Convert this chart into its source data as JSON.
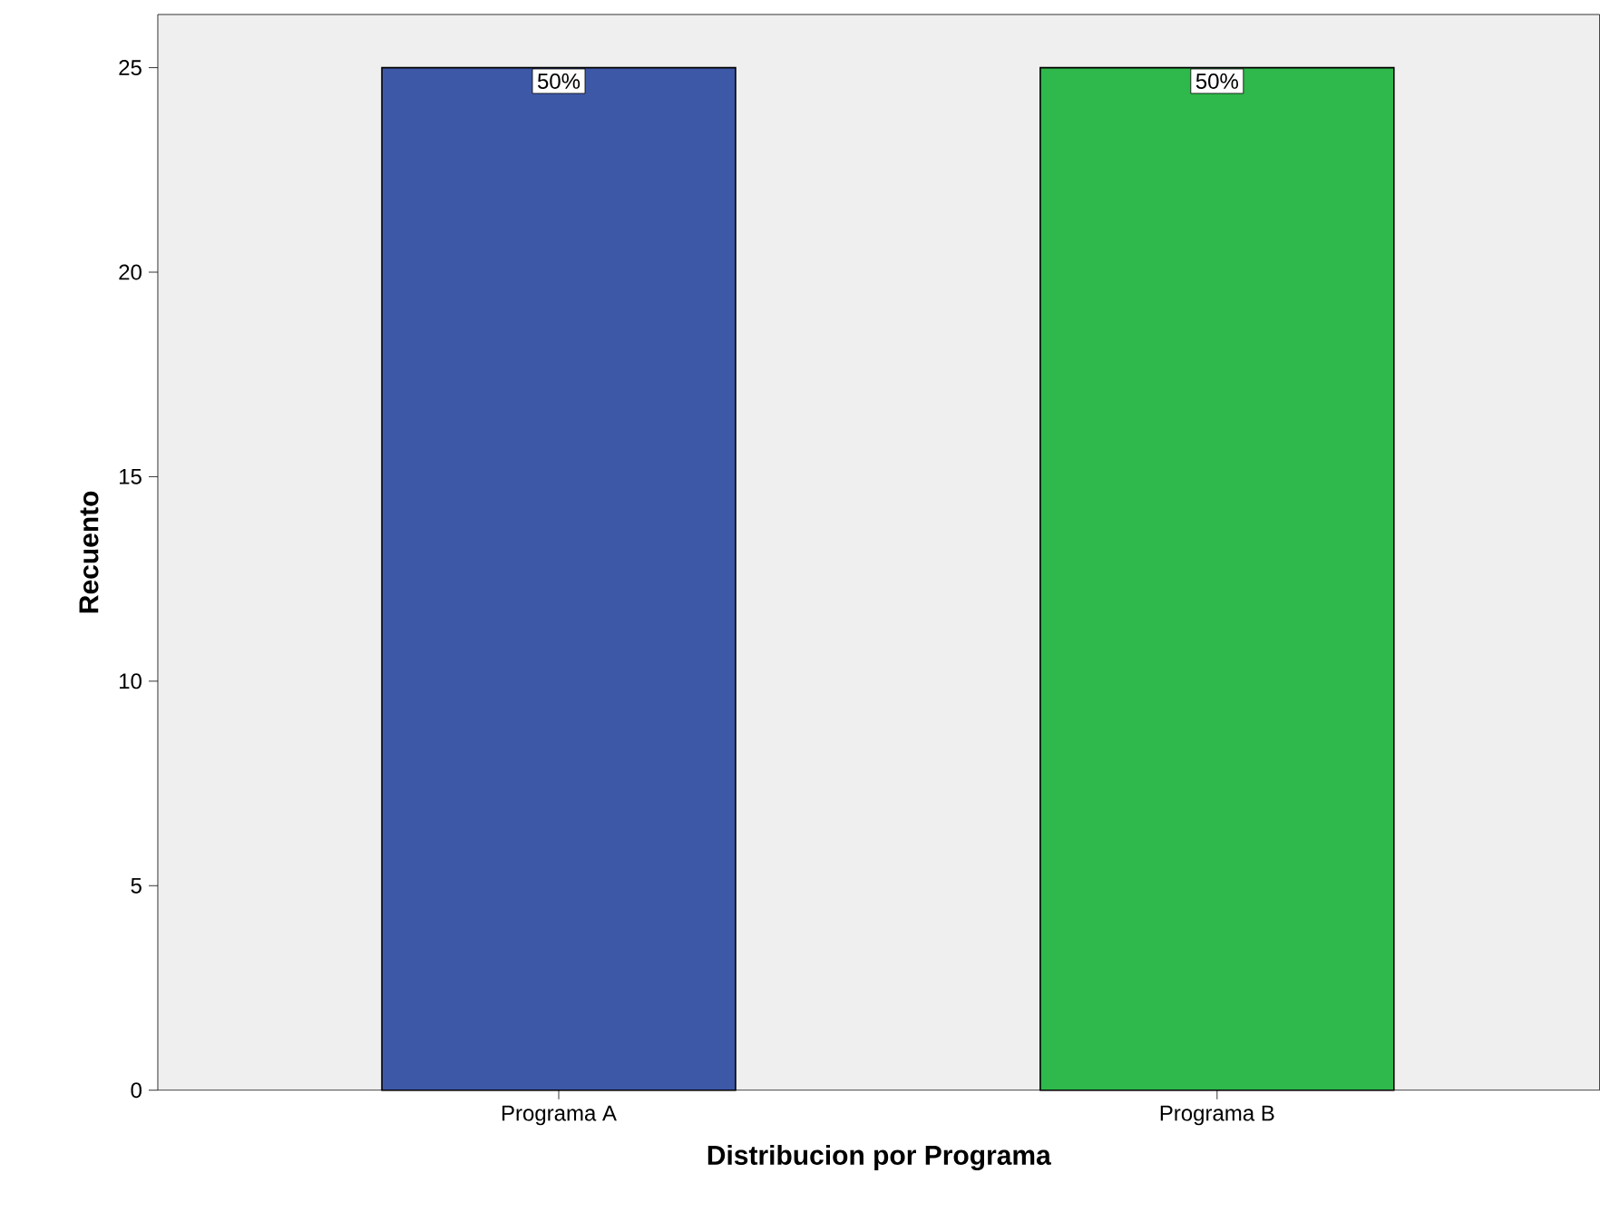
{
  "chart_data": {
    "type": "bar",
    "categories": [
      "Programa A",
      "Programa B"
    ],
    "values": [
      25,
      25
    ],
    "colors": [
      "#3e58a8",
      "#2fb84b"
    ],
    "annotations": [
      {
        "text": "50%",
        "x": "Programa A",
        "y": 25
      },
      {
        "text": "50%",
        "x": "Programa B",
        "y": 25
      }
    ],
    "xlabel": "Distribucion por Programa",
    "ylabel": "Recuento",
    "ylim": [
      0,
      26.3
    ],
    "yticks": [
      0,
      5,
      10,
      15,
      20,
      25
    ],
    "grid": false
  }
}
